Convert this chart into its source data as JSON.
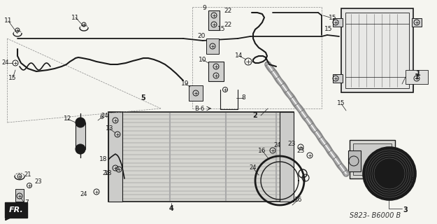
{
  "bg_color": "#f5f5f0",
  "line_color": "#1a1a1a",
  "diagram_code": "S823- B6000 B",
  "figsize": [
    6.25,
    3.2
  ],
  "dpi": 100
}
